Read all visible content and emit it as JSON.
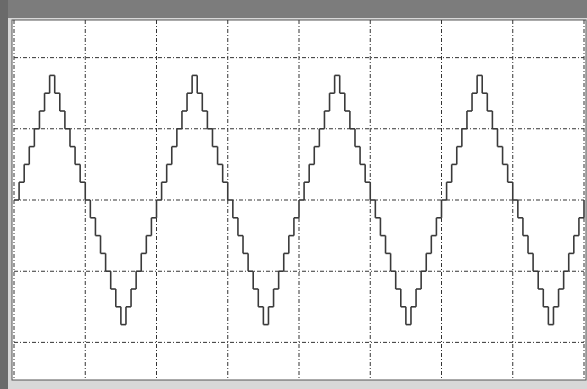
{
  "chart_data": {
    "type": "line",
    "step": "post",
    "color": "#3a3a3a",
    "grid": true,
    "xlim": [
      0,
      112
    ],
    "xticks": [
      0,
      14,
      28,
      42,
      56,
      70,
      84,
      98,
      112
    ],
    "ylim": [
      -2.5,
      2.5
    ],
    "yticks": [
      -2,
      -1,
      0,
      1,
      2
    ],
    "x": [
      0,
      1,
      2,
      3,
      4,
      5,
      6,
      7,
      8,
      9,
      10,
      11,
      12,
      13,
      14,
      15,
      16,
      17,
      18,
      19,
      20,
      21,
      22,
      23,
      24,
      25,
      26,
      27,
      28,
      29,
      30,
      31,
      32,
      33,
      34,
      35,
      36,
      37,
      38,
      39,
      40,
      41,
      42,
      43,
      44,
      45,
      46,
      47,
      48,
      49,
      50,
      51,
      52,
      53,
      54,
      55,
      56,
      57,
      58,
      59,
      60,
      61,
      62,
      63,
      64,
      65,
      66,
      67,
      68,
      69,
      70,
      71,
      72,
      73,
      74,
      75,
      76,
      77,
      78,
      79,
      80,
      81,
      82,
      83,
      84,
      85,
      86,
      87,
      88,
      89,
      90,
      91,
      92,
      93,
      94,
      95,
      96,
      97,
      98,
      99,
      100,
      101,
      102,
      103,
      104,
      105,
      106,
      107,
      108,
      109,
      110,
      111,
      112
    ],
    "values": [
      0,
      0.25,
      0.5,
      0.75,
      1,
      1.25,
      1.5,
      1.75,
      1.5,
      1.25,
      1,
      0.75,
      0.5,
      0.25,
      0,
      -0.25,
      -0.5,
      -0.75,
      -1,
      -1.25,
      -1.5,
      -1.75,
      -1.5,
      -1.25,
      -1,
      -0.75,
      -0.5,
      -0.25,
      0,
      0.25,
      0.5,
      0.75,
      1,
      1.25,
      1.5,
      1.75,
      1.5,
      1.25,
      1,
      0.75,
      0.5,
      0.25,
      0,
      -0.25,
      -0.5,
      -0.75,
      -1,
      -1.25,
      -1.5,
      -1.75,
      -1.5,
      -1.25,
      -1,
      -0.75,
      -0.5,
      -0.25,
      0,
      0.25,
      0.5,
      0.75,
      1,
      1.25,
      1.5,
      1.75,
      1.5,
      1.25,
      1,
      0.75,
      0.5,
      0.25,
      0,
      -0.25,
      -0.5,
      -0.75,
      -1,
      -1.25,
      -1.5,
      -1.75,
      -1.5,
      -1.25,
      -1,
      -0.75,
      -0.5,
      -0.25,
      0,
      0.25,
      0.5,
      0.75,
      1,
      1.25,
      1.5,
      1.75,
      1.5,
      1.25,
      1,
      0.75,
      0.5,
      0.25,
      0,
      -0.25,
      -0.5,
      -0.75,
      -1,
      -1.25,
      -1.5,
      -1.75,
      -1.5,
      -1.25,
      -1,
      -0.75,
      -0.5,
      -0.25,
      0
    ]
  }
}
